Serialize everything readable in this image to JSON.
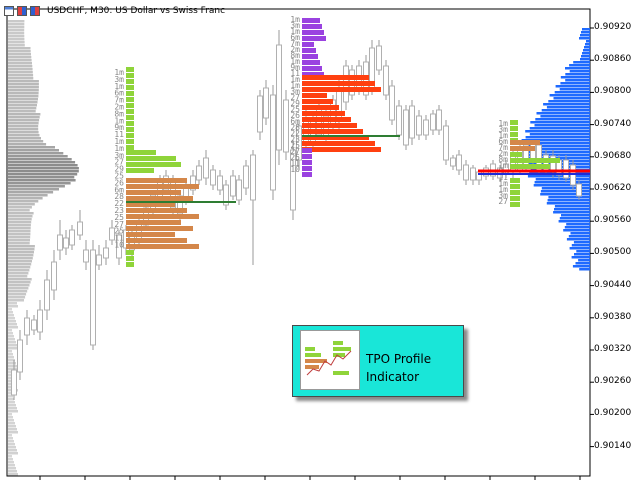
{
  "window": {
    "title": "USDCHF, M30:  US Dollar vs Swiss Franc"
  },
  "price_axis": {
    "labels": [
      "0.90920",
      "0.90860",
      "0.90800",
      "0.90740",
      "0.90680",
      "0.90620",
      "0.90560",
      "0.90500",
      "0.90440",
      "0.90380",
      "0.90320",
      "0.90260",
      "0.90200",
      "0.90140"
    ],
    "highlight_color": "#1e6aff"
  },
  "promo": {
    "line1": "TPO Profile",
    "line2": "Indicator",
    "background": "#19e6d8"
  },
  "colors": {
    "profile_green": "#8fd43a",
    "profile_orange": "#d4874a",
    "profile_red": "#ff4010",
    "profile_purple": "#9a42e0",
    "volume_blue": "#1e6aff",
    "poc_line": "#2e7d32",
    "candle": "#c8c8c8"
  },
  "tpo_letters": [
    "1m",
    "3m",
    "1m",
    "6m",
    "7m",
    "2m",
    "8m",
    "1m",
    "9m",
    "11",
    "1m",
    "1m",
    "3m",
    "27",
    "29",
    "25",
    "26",
    "6m",
    "28",
    "22",
    "23",
    "25",
    "27",
    "25",
    "11",
    "10"
  ]
}
